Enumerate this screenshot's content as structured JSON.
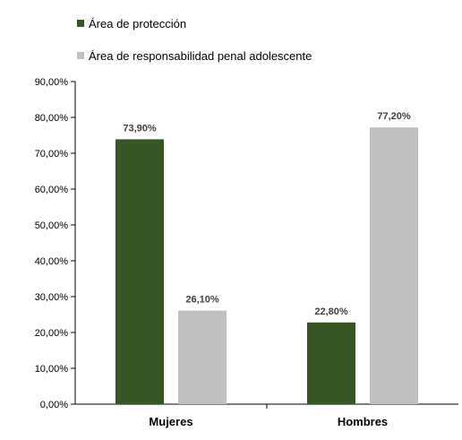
{
  "chart_data": {
    "type": "bar",
    "title": "",
    "xlabel": "",
    "ylabel": "",
    "categories": [
      "Mujeres",
      "Hombres"
    ],
    "series": [
      {
        "name": "Área de protección",
        "color": "#375623",
        "values": [
          73.9,
          22.8
        ],
        "labels": [
          "73,90%",
          "22,80%"
        ]
      },
      {
        "name": "Área de responsabilidad penal adolescente",
        "color": "#bfbfbf",
        "values": [
          26.1,
          77.2
        ],
        "labels": [
          "26,10%",
          "77,20%"
        ]
      }
    ],
    "ylim": [
      0,
      90
    ],
    "yticks": [
      0,
      10,
      20,
      30,
      40,
      50,
      60,
      70,
      80,
      90
    ],
    "ytick_labels": [
      "0,00%",
      "10,00%",
      "20,00%",
      "30,00%",
      "40,00%",
      "50,00%",
      "60,00%",
      "70,00%",
      "80,00%",
      "90,00%"
    ],
    "grid": false,
    "legend_position": "top-left"
  }
}
